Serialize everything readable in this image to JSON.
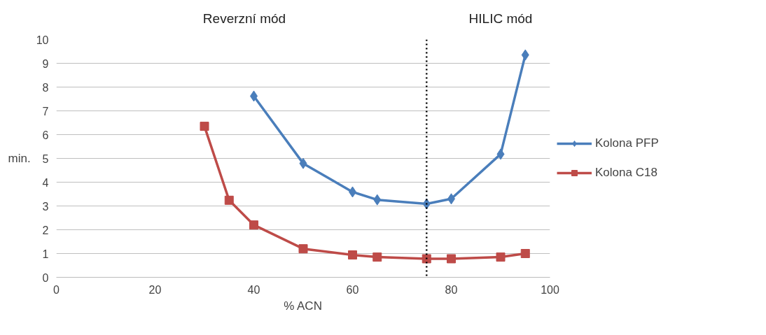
{
  "chart_data": {
    "type": "line",
    "xlabel": "% ACN",
    "ylabel": "min.",
    "xlim": [
      0,
      100
    ],
    "xticks": [
      0,
      20,
      40,
      60,
      80,
      100
    ],
    "ylim": [
      0,
      10
    ],
    "yticks": [
      0,
      1,
      2,
      3,
      4,
      5,
      6,
      7,
      8,
      9,
      10
    ],
    "grid": "y",
    "legend": "right",
    "line_style": "solid",
    "series": [
      {
        "name": "Kolona PFP",
        "color": "#4a7ebb",
        "marker": "diamond",
        "x": [
          40,
          50,
          60,
          65,
          75,
          80,
          90,
          95
        ],
        "values": [
          7.62,
          4.79,
          3.59,
          3.26,
          3.09,
          3.3,
          5.18,
          9.35
        ]
      },
      {
        "name": "Kolona C18",
        "color": "#be4b48",
        "marker": "square",
        "x": [
          30,
          35,
          40,
          50,
          60,
          65,
          75,
          80,
          90,
          95
        ],
        "values": [
          6.35,
          3.24,
          2.2,
          1.2,
          0.94,
          0.85,
          0.78,
          0.78,
          0.85,
          1.0
        ]
      }
    ],
    "ref_lines": [
      {
        "axis": "x",
        "value": 75,
        "color": "#000000",
        "line_style": "dotted"
      }
    ],
    "annotations": [
      "Reverzní mód",
      "HILIC mód"
    ]
  }
}
